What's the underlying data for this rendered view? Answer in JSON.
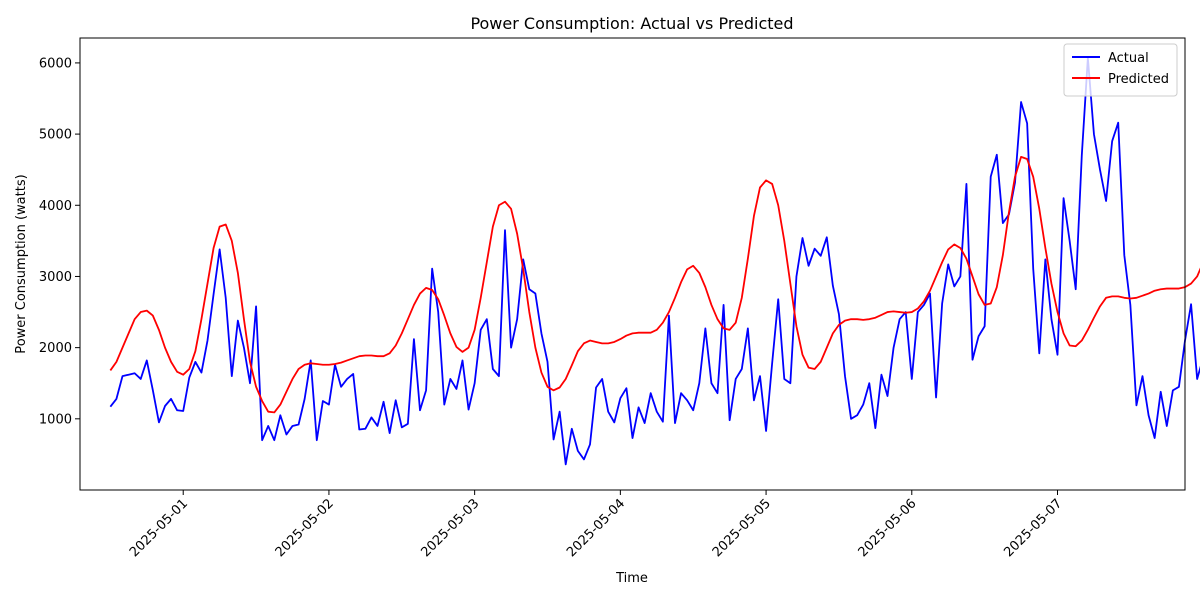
{
  "chart_data": {
    "type": "line",
    "title": "Power Consumption: Actual vs Predicted",
    "xlabel": "Time",
    "ylabel": "Power Consumption (watts)",
    "x_start": "2025-04-30T12:00",
    "x_step_hours": 1,
    "xlim": [
      "2025-04-30T07:00",
      "2025-05-07T21:00"
    ],
    "ylim": [
      0,
      6350
    ],
    "x_ticks": [
      "2025-05-01",
      "2025-05-02",
      "2025-05-03",
      "2025-05-04",
      "2025-05-05",
      "2025-05-06",
      "2025-05-07"
    ],
    "y_ticks": [
      1000,
      2000,
      3000,
      4000,
      5000,
      6000
    ],
    "grid": false,
    "legend_position": "top-right",
    "series": [
      {
        "name": "Actual",
        "color": "#0000ff",
        "values": [
          1170,
          1280,
          1600,
          1620,
          1640,
          1560,
          1820,
          1400,
          950,
          1180,
          1280,
          1120,
          1110,
          1580,
          1800,
          1650,
          2100,
          2750,
          3380,
          2700,
          1600,
          2380,
          2000,
          1500,
          2580,
          700,
          900,
          700,
          1050,
          780,
          900,
          920,
          1280,
          1820,
          700,
          1250,
          1200,
          1760,
          1450,
          1560,
          1630,
          850,
          860,
          1020,
          900,
          1240,
          800,
          1260,
          880,
          930,
          2120,
          1120,
          1400,
          3110,
          2500,
          1200,
          1560,
          1420,
          1820,
          1130,
          1500,
          2250,
          2400,
          1700,
          1600,
          3650,
          2000,
          2400,
          3240,
          2820,
          2760,
          2200,
          1800,
          710,
          1100,
          360,
          860,
          550,
          430,
          640,
          1440,
          1560,
          1100,
          950,
          1290,
          1430,
          730,
          1160,
          940,
          1360,
          1100,
          960,
          2450,
          940,
          1360,
          1260,
          1120,
          1500,
          2270,
          1500,
          1360,
          2600,
          980,
          1560,
          1700,
          2270,
          1260,
          1600,
          830,
          1780,
          2680,
          1560,
          1500,
          3000,
          3540,
          3150,
          3390,
          3290,
          3550,
          2870,
          2470,
          1600,
          1000,
          1050,
          1200,
          1500,
          870,
          1620,
          1320,
          2000,
          2400,
          2500,
          1560,
          2500,
          2600,
          2760,
          1300,
          2620,
          3170,
          2860,
          3000,
          4300,
          1830,
          2160,
          2300,
          4400,
          4710,
          3750,
          3870,
          4320,
          5450,
          5150,
          3110,
          1920,
          3240,
          2400,
          1900,
          4100,
          3500,
          2820,
          4700,
          6070,
          5000,
          4500,
          4060,
          4900,
          5160,
          3300,
          2600,
          1190,
          1600,
          1050,
          730,
          1380,
          900,
          1400,
          1450,
          2100,
          2610,
          1560,
          1860,
          2150,
          1960,
          1760,
          2610,
          3020,
          1860,
          3430,
          3370,
          2890,
          3940,
          2020,
          1990,
          3660,
          2790,
          3460,
          3600,
          5170,
          4640,
          3960,
          4760,
          2400,
          3290,
          2000,
          1660,
          3960,
          3800,
          3100,
          3020,
          4520,
          5060,
          5710,
          5860,
          5600,
          5660,
          5250,
          4200,
          2600,
          900,
          880,
          620,
          760,
          870,
          880,
          960,
          740,
          1300,
          1300,
          1310,
          1200,
          1160,
          1140,
          1620,
          1600,
          1920,
          920,
          1060,
          1210,
          2320,
          1300,
          1050,
          1200,
          850,
          1800,
          1600,
          1320,
          1260,
          2330,
          1370,
          1630,
          1650,
          1490,
          1560,
          1170,
          1580,
          1460,
          1800,
          1820,
          2120,
          2870,
          2700,
          3300,
          3950,
          3600,
          3560,
          3010,
          3010,
          760,
          610,
          1110,
          590,
          650,
          550,
          700,
          650,
          630,
          1400,
          1600,
          1200,
          1050,
          1200,
          1760,
          860,
          1000,
          1200,
          1400,
          1100,
          1080,
          1080,
          1320,
          880,
          2170,
          1260,
          1220,
          1660,
          1500,
          1100,
          1880,
          1240,
          1060,
          1720,
          680,
          1540,
          1750,
          2280,
          1980,
          1740,
          3330,
          3160,
          2680,
          3720,
          2760,
          2810,
          2960,
          2610,
          600,
          700,
          660,
          1000,
          960,
          1210,
          300,
          1000,
          700,
          860,
          1470,
          1380,
          1220,
          1330,
          1160,
          2560,
          800,
          1000,
          2240,
          2000,
          1180,
          980,
          820,
          660
        ]
      },
      {
        "name": "Predicted",
        "color": "#ff0000",
        "values": [
          1680,
          1800,
          2000,
          2200,
          2400,
          2500,
          2520,
          2450,
          2250,
          2000,
          1800,
          1660,
          1620,
          1700,
          1950,
          2400,
          2900,
          3400,
          3700,
          3730,
          3500,
          3050,
          2400,
          1800,
          1450,
          1250,
          1100,
          1090,
          1200,
          1380,
          1560,
          1700,
          1760,
          1780,
          1770,
          1760,
          1760,
          1770,
          1790,
          1820,
          1850,
          1880,
          1890,
          1890,
          1880,
          1880,
          1920,
          2030,
          2200,
          2400,
          2600,
          2760,
          2840,
          2810,
          2680,
          2450,
          2200,
          2010,
          1940,
          2000,
          2250,
          2700,
          3200,
          3700,
          4000,
          4050,
          3950,
          3600,
          3100,
          2500,
          2000,
          1650,
          1450,
          1400,
          1440,
          1560,
          1750,
          1950,
          2060,
          2100,
          2080,
          2060,
          2060,
          2080,
          2120,
          2170,
          2200,
          2210,
          2210,
          2210,
          2250,
          2350,
          2500,
          2700,
          2920,
          3100,
          3150,
          3050,
          2850,
          2600,
          2400,
          2270,
          2250,
          2350,
          2700,
          3250,
          3850,
          4250,
          4350,
          4300,
          4000,
          3500,
          2900,
          2300,
          1900,
          1720,
          1700,
          1800,
          2000,
          2200,
          2320,
          2380,
          2400,
          2400,
          2390,
          2400,
          2420,
          2460,
          2500,
          2510,
          2500,
          2490,
          2500,
          2550,
          2650,
          2800,
          3000,
          3200,
          3380,
          3450,
          3400,
          3250,
          3000,
          2750,
          2600,
          2620,
          2850,
          3300,
          3900,
          4400,
          4680,
          4650,
          4400,
          3950,
          3400,
          2900,
          2500,
          2200,
          2030,
          2020,
          2100,
          2250,
          2420,
          2580,
          2700,
          2720,
          2720,
          2700,
          2690,
          2700,
          2730,
          2760,
          2800,
          2820,
          2830,
          2830,
          2830,
          2850,
          2900,
          3000,
          3200,
          3450,
          3650,
          3750,
          3770,
          3700,
          3500,
          3250,
          3050,
          2950,
          2900,
          3000,
          3300,
          3800,
          4350,
          4800,
          5000,
          4980,
          4700,
          4200,
          3500,
          2700,
          1900,
          1200,
          800,
          620,
          600,
          700,
          900,
          1100,
          1250,
          1280,
          1270,
          1260,
          1250,
          1260,
          1300,
          1350,
          1380,
          1400,
          1400,
          1400,
          1420,
          1480,
          1600,
          1800,
          2050,
          2250,
          2340,
          2300,
          2150,
          1950,
          1750,
          1580,
          1480,
          1450,
          1550,
          1800,
          2200,
          2700,
          3200,
          3500,
          3570,
          3400,
          3000,
          2400,
          1800,
          1300,
          1000,
          900,
          920,
          1050,
          1200,
          1380,
          1520,
          1590,
          1600,
          1590,
          1580,
          1570,
          1580,
          1610,
          1650,
          1680,
          1690,
          1690,
          1690,
          1700,
          1750,
          1860,
          2050,
          2280,
          2480,
          2620,
          2660,
          2600,
          2430,
          2200,
          1980,
          1820,
          1760,
          1860,
          2200,
          2700,
          3250,
          3700,
          3870,
          3850,
          3600,
          3100,
          2500,
          1900,
          1450,
          1250,
          1220,
          1300,
          1450,
          1620,
          1780,
          1880,
          1900,
          1900,
          1890,
          1880,
          1890,
          1920,
          1970,
          2010,
          2030,
          2030,
          2030,
          2030,
          2050
        ]
      }
    ]
  }
}
